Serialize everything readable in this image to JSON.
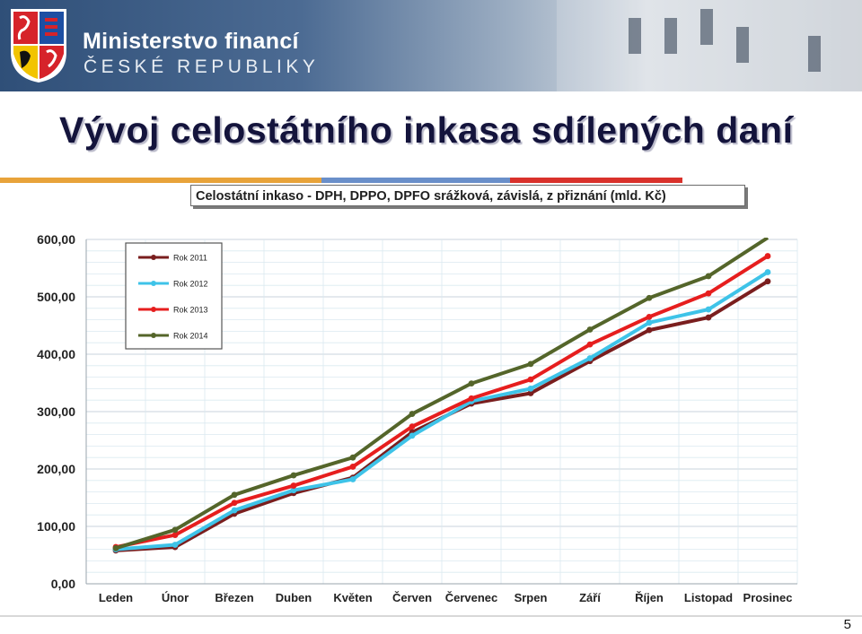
{
  "header": {
    "brand_line1": "Ministerstvo financí",
    "brand_line2": "ČESKÉ REPUBLIKY"
  },
  "slide": {
    "title": "Vývoj celostátního inkasa sdílených daní",
    "page_number": "5"
  },
  "colors": {
    "title": "#14143c",
    "bar_orange": "#e8a33a",
    "bar_blue": "#6a8fc9",
    "bar_red": "#d9312b"
  },
  "chart_data": {
    "type": "line",
    "title": "Celostátní inkaso - DPH, DPPO, DPFO srážková, závislá, z přiznání (mld. Kč)",
    "xlabel": "",
    "ylabel": "",
    "categories": [
      "Leden",
      "Únor",
      "Březen",
      "Duben",
      "Květen",
      "Červen",
      "Červenec",
      "Srpen",
      "Září",
      "Říjen",
      "Listopad",
      "Prosinec"
    ],
    "ylim": [
      0,
      600
    ],
    "yticks": [
      "0,00",
      "100,00",
      "200,00",
      "300,00",
      "400,00",
      "500,00",
      "600,00"
    ],
    "grid": true,
    "legend_position": "top-left",
    "series": [
      {
        "name": "Rok 2011",
        "color": "#7a1e1e",
        "values": [
          58,
          64,
          122,
          158,
          185,
          264,
          314,
          332,
          388,
          442,
          464,
          527
        ]
      },
      {
        "name": "Rok 2012",
        "color": "#3ec3e8",
        "values": [
          60,
          68,
          128,
          163,
          182,
          258,
          318,
          340,
          393,
          455,
          478,
          543
        ]
      },
      {
        "name": "Rok 2013",
        "color": "#e61e1e",
        "values": [
          64,
          85,
          141,
          171,
          204,
          274,
          323,
          356,
          417,
          465,
          506,
          571
        ]
      },
      {
        "name": "Rok 2014",
        "color": "#54652a",
        "values": [
          62,
          94,
          155,
          189,
          220,
          296,
          349,
          383,
          443,
          498,
          536,
          603
        ]
      }
    ]
  }
}
